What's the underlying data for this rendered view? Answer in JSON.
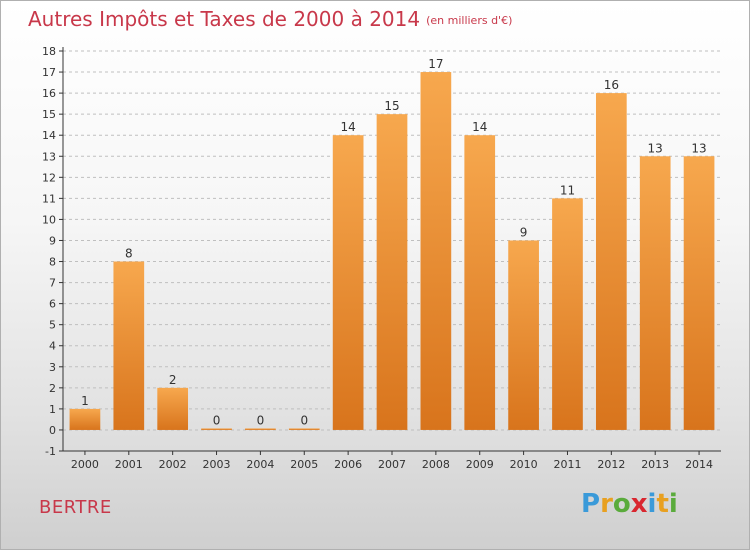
{
  "title": "Autres Impôts et Taxes de 2000 à 2014",
  "subtitle": "(en milliers d'€)",
  "commune": "BERTRE",
  "brand": {
    "text": "Proxiti",
    "letter_colors": [
      "#3a9ad9",
      "#e8a020",
      "#5aab3c",
      "#d9262f",
      "#3a9ad9",
      "#e8a020",
      "#5aab3c"
    ]
  },
  "colors": {
    "bar_top": "#f7a84e",
    "bar_bottom": "#d8741c",
    "title": "#c8384a",
    "axis": "#333333"
  },
  "chart_data": {
    "type": "bar",
    "categories": [
      "2000",
      "2001",
      "2002",
      "2003",
      "2004",
      "2005",
      "2006",
      "2007",
      "2008",
      "2009",
      "2010",
      "2011",
      "2012",
      "2013",
      "2014"
    ],
    "values": [
      1,
      8,
      2,
      0,
      0,
      0,
      14,
      15,
      17,
      14,
      9,
      11,
      16,
      13,
      13
    ],
    "data_labels": [
      "1",
      "8",
      "2",
      "0",
      "0",
      "0",
      "14",
      "15",
      "17",
      "14",
      "9",
      "11",
      "16",
      "13",
      "13"
    ],
    "y_ticks": [
      "-1",
      "0",
      "1",
      "2",
      "3",
      "4",
      "5",
      "6",
      "7",
      "8",
      "9",
      "10",
      "11",
      "12",
      "13",
      "14",
      "15",
      "16",
      "17",
      "18"
    ],
    "ylim": [
      -1,
      18
    ],
    "grid": "horizontal-dashed"
  }
}
